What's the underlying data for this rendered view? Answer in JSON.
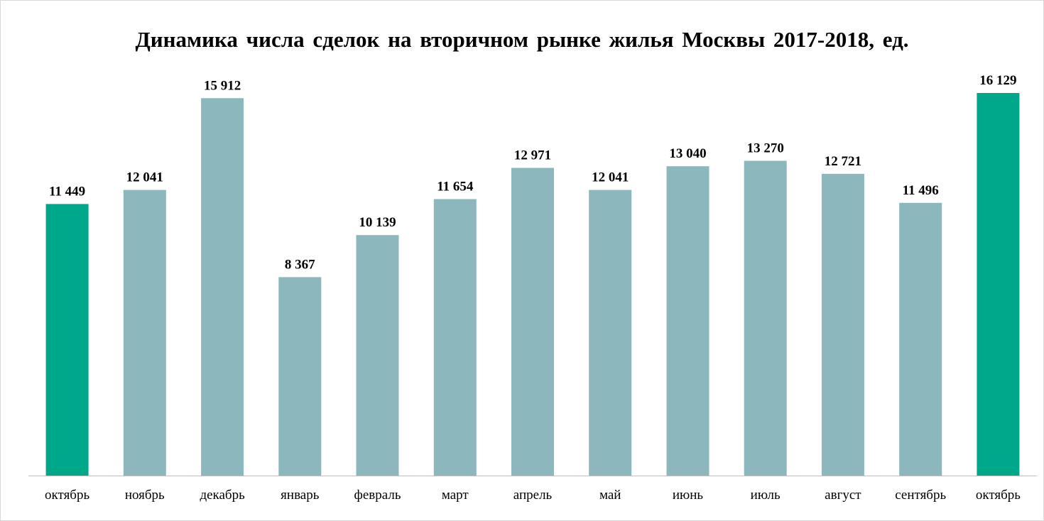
{
  "chart_data": {
    "type": "bar",
    "title": "Динамика числа сделок на вторичном рынке жилья Москвы 2017-2018, ед.",
    "xlabel": "",
    "ylabel": "",
    "ylim": [
      0,
      17000
    ],
    "grid": false,
    "legend": "none",
    "categories": [
      "октябрь",
      "ноябрь",
      "декабрь",
      "январь",
      "февраль",
      "март",
      "апрель",
      "май",
      "июнь",
      "июль",
      "август",
      "сентябрь",
      "октябрь"
    ],
    "values": [
      11449,
      12041,
      15912,
      8367,
      10139,
      11654,
      12971,
      12041,
      13040,
      13270,
      12721,
      11496,
      16129
    ],
    "data_labels": [
      "11 449",
      "12 041",
      "15 912",
      "8 367",
      "10 139",
      "11 654",
      "12 971",
      "12 041",
      "13 040",
      "13 270",
      "12 721",
      "11 496",
      "16 129"
    ],
    "highlighted": [
      true,
      false,
      false,
      false,
      false,
      false,
      false,
      false,
      false,
      false,
      false,
      false,
      true
    ],
    "colors": {
      "bar": "#8cb8bd",
      "highlight": "#00a88a",
      "axis": "#bfbfbf",
      "text": "#000000"
    }
  }
}
